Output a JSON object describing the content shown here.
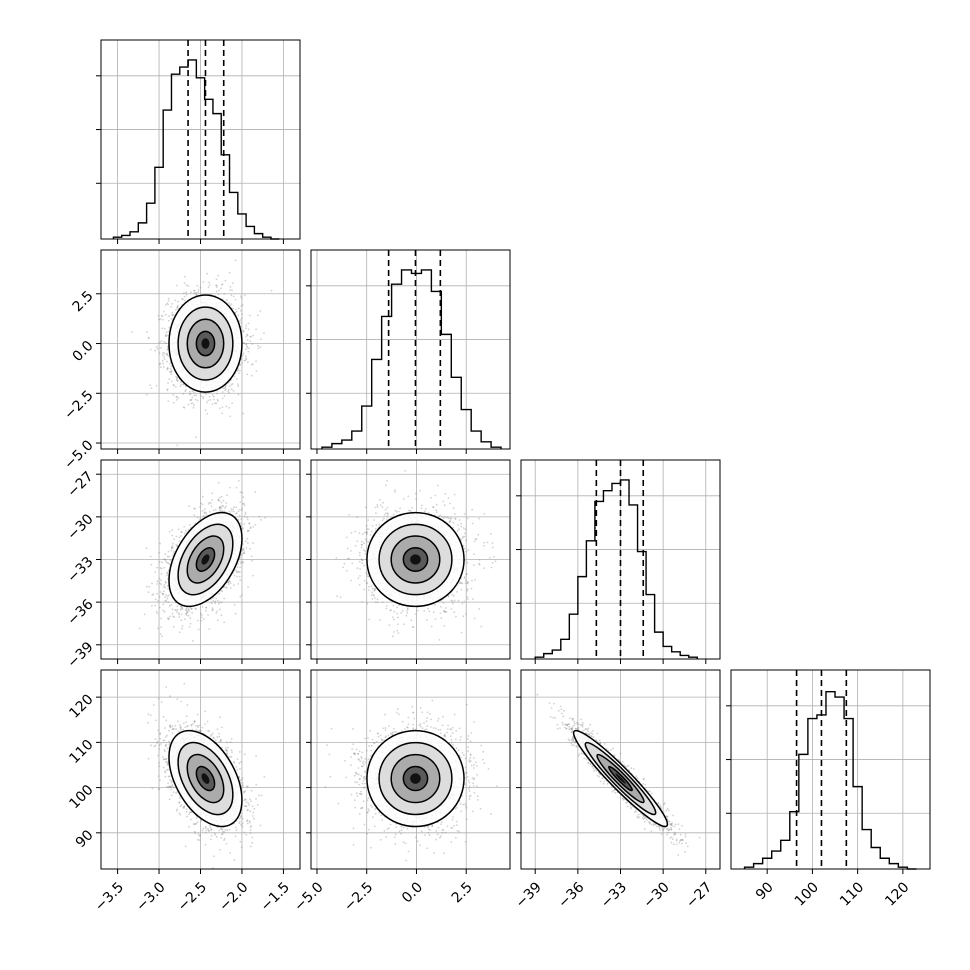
{
  "chart_data": {
    "type": "corner",
    "parameters": 4,
    "colors": {
      "line": "#000000",
      "grid": "#b0b0b0",
      "scatter": "#7f7f7f",
      "background": "#ffffff"
    },
    "panels": {
      "hist": [
        {
          "row": 0,
          "col": 0,
          "x_range": [
            -3.7,
            -1.3
          ],
          "bin_edges": [
            -3.55,
            -3.45,
            -3.35,
            -3.25,
            -3.15,
            -3.05,
            -2.95,
            -2.85,
            -2.75,
            -2.65,
            -2.55,
            -2.45,
            -2.35,
            -2.25,
            -2.15,
            -2.05,
            -1.95,
            -1.85,
            -1.75,
            -1.65,
            -1.55
          ],
          "counts": [
            0.01,
            0.02,
            0.04,
            0.09,
            0.2,
            0.4,
            0.72,
            0.92,
            0.96,
            1.0,
            0.9,
            0.78,
            0.7,
            0.47,
            0.26,
            0.14,
            0.07,
            0.03,
            0.01,
            0.0
          ],
          "quantiles": [
            -2.65,
            -2.44,
            -2.22
          ],
          "grid_x": [
            -3.5,
            -3.0,
            -2.5,
            -2.0,
            -1.5
          ],
          "grid_y": [
            0.28,
            0.55,
            0.82
          ]
        },
        {
          "row": 1,
          "col": 1,
          "x_range": [
            -5.3,
            4.7
          ],
          "bin_edges": [
            -4.75,
            -4.25,
            -3.75,
            -3.25,
            -2.75,
            -2.25,
            -1.75,
            -1.25,
            -0.75,
            -0.25,
            0.25,
            0.75,
            1.25,
            1.75,
            2.25,
            2.75,
            3.25,
            3.75,
            4.25
          ],
          "counts": [
            0.01,
            0.03,
            0.05,
            0.1,
            0.24,
            0.5,
            0.74,
            0.92,
            1.0,
            0.98,
            1.0,
            0.88,
            0.64,
            0.4,
            0.22,
            0.1,
            0.04,
            0.01
          ],
          "quantiles": [
            -1.4,
            -0.05,
            1.2
          ],
          "grid_x": [
            -5.0,
            -2.5,
            0.0,
            2.5
          ],
          "grid_y": [
            0.28,
            0.55,
            0.82
          ]
        },
        {
          "row": 2,
          "col": 2,
          "x_range": [
            -40.0,
            -26.0
          ],
          "bin_edges": [
            -39.0,
            -38.4,
            -37.8,
            -37.2,
            -36.6,
            -36.0,
            -35.4,
            -34.8,
            -34.2,
            -33.6,
            -33.0,
            -32.4,
            -31.8,
            -31.2,
            -30.6,
            -30.0,
            -29.4,
            -28.8,
            -28.2,
            -27.6
          ],
          "counts": [
            0.01,
            0.03,
            0.05,
            0.11,
            0.25,
            0.46,
            0.66,
            0.88,
            0.94,
            0.98,
            1.0,
            0.86,
            0.6,
            0.36,
            0.15,
            0.07,
            0.04,
            0.02,
            0.01
          ],
          "quantiles": [
            -34.7,
            -33.0,
            -31.4
          ],
          "grid_x": [
            -39,
            -36,
            -33,
            -30,
            -27
          ],
          "grid_y": [
            0.28,
            0.55,
            0.82
          ]
        },
        {
          "row": 3,
          "col": 3,
          "x_range": [
            82.0,
            126.0
          ],
          "bin_edges": [
            85,
            87,
            89,
            91,
            93,
            95,
            97,
            99,
            101,
            103,
            105,
            107,
            109,
            111,
            113,
            115,
            117,
            119,
            121,
            123
          ],
          "counts": [
            0.01,
            0.03,
            0.06,
            0.1,
            0.16,
            0.32,
            0.64,
            0.84,
            0.86,
            0.99,
            0.96,
            0.84,
            0.46,
            0.22,
            0.12,
            0.06,
            0.03,
            0.01,
            0.0
          ],
          "quantiles": [
            96.5,
            102.0,
            107.5
          ],
          "grid_x": [
            90,
            100,
            110,
            120
          ],
          "grid_y": [
            0.28,
            0.55,
            0.82
          ]
        }
      ],
      "scatter": [
        {
          "row": 1,
          "col": 0,
          "x_range": [
            -3.7,
            -1.3
          ],
          "y_range": [
            -5.3,
            4.7
          ],
          "mean": [
            -2.44,
            0.0
          ],
          "sd": [
            0.22,
            1.22
          ],
          "corr": 0.0,
          "grid_x": [
            -3.5,
            -3.0,
            -2.5,
            -2.0,
            -1.5
          ],
          "grid_y": [
            -5.0,
            -2.5,
            0.0,
            2.5
          ]
        },
        {
          "row": 2,
          "col": 0,
          "x_range": [
            -3.7,
            -1.3
          ],
          "y_range": [
            -40.0,
            -26.0
          ],
          "mean": [
            -2.44,
            -33.0
          ],
          "sd": [
            0.22,
            1.65
          ],
          "corr": 0.45,
          "grid_x": [
            -3.5,
            -3.0,
            -2.5,
            -2.0,
            -1.5
          ],
          "grid_y": [
            -39,
            -36,
            -33,
            -30,
            -27
          ]
        },
        {
          "row": 2,
          "col": 1,
          "x_range": [
            -5.3,
            4.7
          ],
          "y_range": [
            -40.0,
            -26.0
          ],
          "mean": [
            -0.05,
            -33.0
          ],
          "sd": [
            1.22,
            1.65
          ],
          "corr": 0.0,
          "grid_x": [
            -5.0,
            -2.5,
            0.0,
            2.5
          ],
          "grid_y": [
            -39,
            -36,
            -33,
            -30,
            -27
          ]
        },
        {
          "row": 3,
          "col": 0,
          "x_range": [
            -3.7,
            -1.3
          ],
          "y_range": [
            82.0,
            126.0
          ],
          "mean": [
            -2.44,
            102.0
          ],
          "sd": [
            0.22,
            5.3
          ],
          "corr": -0.45,
          "grid_x": [
            -3.5,
            -3.0,
            -2.5,
            -2.0,
            -1.5
          ],
          "grid_y": [
            90,
            100,
            110,
            120
          ]
        },
        {
          "row": 3,
          "col": 1,
          "x_range": [
            -5.3,
            4.7
          ],
          "y_range": [
            82.0,
            126.0
          ],
          "mean": [
            -0.05,
            102.0
          ],
          "sd": [
            1.22,
            5.3
          ],
          "corr": 0.0,
          "grid_x": [
            -5.0,
            -2.5,
            0.0,
            2.5
          ],
          "grid_y": [
            90,
            100,
            110,
            120
          ]
        },
        {
          "row": 3,
          "col": 2,
          "x_range": [
            -40.0,
            -26.0
          ],
          "y_range": [
            82.0,
            126.0
          ],
          "mean": [
            -33.0,
            102.0
          ],
          "sd": [
            1.65,
            5.3
          ],
          "corr": -0.95,
          "grid_x": [
            -39,
            -36,
            -33,
            -30,
            -27
          ],
          "grid_y": [
            90,
            100,
            110,
            120
          ]
        }
      ]
    },
    "x_tick_labels": [
      [
        "−3.5",
        "−3.0",
        "−2.5",
        "−2.0",
        "−1.5"
      ],
      [
        "−5.0",
        "−2.5",
        "0.0",
        "2.5"
      ],
      [
        "−39",
        "−36",
        "−33",
        "−30",
        "−27"
      ],
      [
        "90",
        "100",
        "110",
        "120"
      ]
    ],
    "y_tick_labels": {
      "1": [
        "−5.0",
        "−2.5",
        "0.0",
        "2.5"
      ],
      "2": [
        "−39",
        "−36",
        "−33",
        "−30",
        "−27"
      ],
      "3": [
        "90",
        "100",
        "110",
        "120"
      ]
    }
  }
}
